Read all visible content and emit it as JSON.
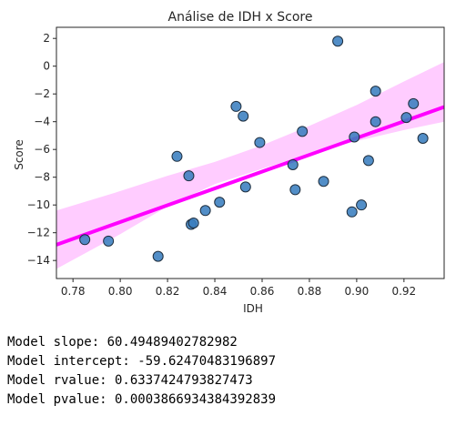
{
  "chart_data": {
    "type": "scatter",
    "title": "Análise de IDH x Score",
    "xlabel": "IDH",
    "ylabel": "Score",
    "xlim": [
      0.773,
      0.937
    ],
    "ylim": [
      -15.3,
      2.8
    ],
    "x_ticks": [
      0.78,
      0.8,
      0.82,
      0.84,
      0.86,
      0.88,
      0.9,
      0.92
    ],
    "x_tick_labels": [
      "0.78",
      "0.80",
      "0.82",
      "0.84",
      "0.86",
      "0.88",
      "0.90",
      "0.92"
    ],
    "y_ticks": [
      2,
      0,
      -2,
      -4,
      -6,
      -8,
      -10,
      -12,
      -14
    ],
    "y_tick_labels": [
      "2",
      "0",
      "−2",
      "−4",
      "−6",
      "−8",
      "−10",
      "−12",
      "−14"
    ],
    "grid": false,
    "series": [
      {
        "points": [
          {
            "x": 0.785,
            "y": -12.5
          },
          {
            "x": 0.795,
            "y": -12.6
          },
          {
            "x": 0.816,
            "y": -13.7
          },
          {
            "x": 0.824,
            "y": -6.5
          },
          {
            "x": 0.829,
            "y": -7.9
          },
          {
            "x": 0.83,
            "y": -11.4
          },
          {
            "x": 0.831,
            "y": -11.3
          },
          {
            "x": 0.836,
            "y": -10.4
          },
          {
            "x": 0.842,
            "y": -9.8
          },
          {
            "x": 0.849,
            "y": -2.9
          },
          {
            "x": 0.852,
            "y": -3.6
          },
          {
            "x": 0.853,
            "y": -8.7
          },
          {
            "x": 0.859,
            "y": -5.5
          },
          {
            "x": 0.873,
            "y": -7.1
          },
          {
            "x": 0.874,
            "y": -8.9
          },
          {
            "x": 0.877,
            "y": -4.7
          },
          {
            "x": 0.886,
            "y": -8.3
          },
          {
            "x": 0.892,
            "y": 1.8
          },
          {
            "x": 0.898,
            "y": -10.5
          },
          {
            "x": 0.899,
            "y": -5.1
          },
          {
            "x": 0.902,
            "y": -10.0
          },
          {
            "x": 0.905,
            "y": -6.8
          },
          {
            "x": 0.908,
            "y": -1.8
          },
          {
            "x": 0.908,
            "y": -4.0
          },
          {
            "x": 0.921,
            "y": -3.7
          },
          {
            "x": 0.924,
            "y": -2.7
          },
          {
            "x": 0.928,
            "y": -5.2
          }
        ]
      }
    ],
    "regression": {
      "slope": 60.49489402782982,
      "intercept": -59.62470483196897,
      "x_range": [
        0.773,
        0.937
      ],
      "ci_lower": [
        {
          "x": 0.773,
          "y": -14.6
        },
        {
          "x": 0.8,
          "y": -12.1
        },
        {
          "x": 0.82,
          "y": -10.1
        },
        {
          "x": 0.84,
          "y": -8.5
        },
        {
          "x": 0.86,
          "y": -7.4
        },
        {
          "x": 0.88,
          "y": -6.3
        },
        {
          "x": 0.9,
          "y": -5.4
        },
        {
          "x": 0.92,
          "y": -4.6
        },
        {
          "x": 0.937,
          "y": -4.0
        }
      ],
      "ci_upper": [
        {
          "x": 0.773,
          "y": -10.4
        },
        {
          "x": 0.8,
          "y": -9.0
        },
        {
          "x": 0.82,
          "y": -7.9
        },
        {
          "x": 0.84,
          "y": -6.9
        },
        {
          "x": 0.86,
          "y": -5.7
        },
        {
          "x": 0.88,
          "y": -4.3
        },
        {
          "x": 0.9,
          "y": -2.8
        },
        {
          "x": 0.92,
          "y": -1.1
        },
        {
          "x": 0.937,
          "y": 0.3
        }
      ]
    },
    "colors": {
      "point_fill": "#3a7ebf",
      "point_edge": "#1f2f3f",
      "line": "#ff00ff",
      "band": "#ffccff",
      "axes": "#262626"
    }
  },
  "output_lines": [
    "Model slope: 60.49489402782982",
    "Model intercept: -59.62470483196897",
    "Model rvalue: 0.6337424793827473",
    "Model pvalue: 0.0003866934384392839"
  ]
}
